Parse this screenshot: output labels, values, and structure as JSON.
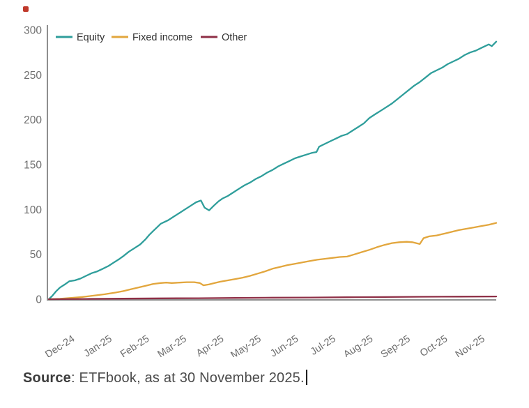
{
  "marker": {
    "color": "#c0392b"
  },
  "source_note": {
    "prefix": "Source",
    "text": ": ETFbook, as at 30 November 2025.",
    "caret_visible": true
  },
  "colors": {
    "axis": "#8f8f8f",
    "tick_label": "#6e6e6e",
    "legend_text": "#333333",
    "equity": "#2f9e9b",
    "fixed_income": "#e2a63d",
    "other": "#8e2f46"
  },
  "chart_data": {
    "type": "line",
    "title": "",
    "xlabel": "",
    "ylabel": "",
    "grid": false,
    "legend_position": "top-left",
    "x_axis": {
      "labels": [
        "Dec-24",
        "Jan-25",
        "Feb-25",
        "Mar-25",
        "Apr-25",
        "May-25",
        "Jun-25",
        "Jul-25",
        "Aug-25",
        "Sep-25",
        "Oct-25",
        "Nov-25"
      ],
      "label_rotation_deg": 33,
      "range_months": [
        0,
        12
      ]
    },
    "y_axis": {
      "ticks": [
        0,
        50,
        100,
        150,
        200,
        250,
        300
      ],
      "range": [
        0,
        300
      ]
    },
    "series": [
      {
        "name": "Equity",
        "color": "#2f9e9b",
        "points": [
          [
            0,
            0
          ],
          [
            0.1,
            4
          ],
          [
            0.2,
            9
          ],
          [
            0.3,
            13
          ],
          [
            0.45,
            17
          ],
          [
            0.55,
            20
          ],
          [
            0.7,
            21
          ],
          [
            0.85,
            23
          ],
          [
            1,
            26
          ],
          [
            1.15,
            29
          ],
          [
            1.3,
            31
          ],
          [
            1.45,
            34
          ],
          [
            1.6,
            37
          ],
          [
            1.75,
            41
          ],
          [
            1.9,
            45
          ],
          [
            2,
            48
          ],
          [
            2.15,
            53
          ],
          [
            2.3,
            57
          ],
          [
            2.45,
            61
          ],
          [
            2.6,
            67
          ],
          [
            2.7,
            72
          ],
          [
            2.8,
            76
          ],
          [
            2.9,
            80
          ],
          [
            3,
            84
          ],
          [
            3.1,
            86
          ],
          [
            3.2,
            88
          ],
          [
            3.35,
            92
          ],
          [
            3.5,
            96
          ],
          [
            3.65,
            100
          ],
          [
            3.8,
            104
          ],
          [
            3.95,
            108
          ],
          [
            4.08,
            110
          ],
          [
            4.18,
            102
          ],
          [
            4.3,
            99
          ],
          [
            4.42,
            104
          ],
          [
            4.55,
            109
          ],
          [
            4.65,
            112
          ],
          [
            4.8,
            115
          ],
          [
            4.95,
            119
          ],
          [
            5.1,
            123
          ],
          [
            5.25,
            127
          ],
          [
            5.4,
            130
          ],
          [
            5.55,
            134
          ],
          [
            5.7,
            137
          ],
          [
            5.85,
            141
          ],
          [
            6,
            144
          ],
          [
            6.15,
            148
          ],
          [
            6.3,
            151
          ],
          [
            6.45,
            154
          ],
          [
            6.6,
            157
          ],
          [
            6.75,
            159
          ],
          [
            6.9,
            161
          ],
          [
            7.05,
            163
          ],
          [
            7.18,
            164
          ],
          [
            7.25,
            170
          ],
          [
            7.4,
            173
          ],
          [
            7.55,
            176
          ],
          [
            7.7,
            179
          ],
          [
            7.85,
            182
          ],
          [
            8,
            184
          ],
          [
            8.15,
            188
          ],
          [
            8.3,
            192
          ],
          [
            8.45,
            196
          ],
          [
            8.6,
            202
          ],
          [
            8.75,
            206
          ],
          [
            8.9,
            210
          ],
          [
            9.05,
            214
          ],
          [
            9.2,
            218
          ],
          [
            9.35,
            223
          ],
          [
            9.5,
            228
          ],
          [
            9.65,
            233
          ],
          [
            9.8,
            238
          ],
          [
            9.95,
            242
          ],
          [
            10.1,
            247
          ],
          [
            10.25,
            252
          ],
          [
            10.4,
            255
          ],
          [
            10.55,
            258
          ],
          [
            10.7,
            262
          ],
          [
            10.85,
            265
          ],
          [
            11,
            268
          ],
          [
            11.15,
            272
          ],
          [
            11.3,
            275
          ],
          [
            11.45,
            277
          ],
          [
            11.6,
            280
          ],
          [
            11.7,
            282
          ],
          [
            11.8,
            284
          ],
          [
            11.88,
            282
          ],
          [
            12,
            287
          ]
        ]
      },
      {
        "name": "Fixed income",
        "color": "#e2a63d",
        "points": [
          [
            0,
            0
          ],
          [
            0.3,
            0.5
          ],
          [
            0.6,
            1.5
          ],
          [
            0.9,
            2.5
          ],
          [
            1.2,
            4
          ],
          [
            1.5,
            5.5
          ],
          [
            1.8,
            7.5
          ],
          [
            2,
            9
          ],
          [
            2.2,
            11
          ],
          [
            2.4,
            13
          ],
          [
            2.6,
            15
          ],
          [
            2.8,
            17
          ],
          [
            3,
            18
          ],
          [
            3.15,
            18.5
          ],
          [
            3.3,
            18
          ],
          [
            3.5,
            18.5
          ],
          [
            3.7,
            19
          ],
          [
            3.9,
            19
          ],
          [
            4.05,
            18
          ],
          [
            4.15,
            15.5
          ],
          [
            4.3,
            16.5
          ],
          [
            4.45,
            18
          ],
          [
            4.6,
            19.5
          ],
          [
            4.8,
            21
          ],
          [
            5,
            22.5
          ],
          [
            5.2,
            24
          ],
          [
            5.4,
            26
          ],
          [
            5.6,
            28.5
          ],
          [
            5.8,
            31
          ],
          [
            6,
            34
          ],
          [
            6.2,
            36
          ],
          [
            6.4,
            38
          ],
          [
            6.6,
            39.5
          ],
          [
            6.8,
            41
          ],
          [
            7,
            42.5
          ],
          [
            7.2,
            44
          ],
          [
            7.4,
            45
          ],
          [
            7.6,
            46
          ],
          [
            7.8,
            47
          ],
          [
            8,
            47.5
          ],
          [
            8.2,
            50
          ],
          [
            8.4,
            52.5
          ],
          [
            8.6,
            55
          ],
          [
            8.8,
            58
          ],
          [
            9,
            60.5
          ],
          [
            9.2,
            62.5
          ],
          [
            9.4,
            63.5
          ],
          [
            9.6,
            64
          ],
          [
            9.75,
            63.5
          ],
          [
            9.95,
            61.5
          ],
          [
            10.05,
            68
          ],
          [
            10.2,
            70
          ],
          [
            10.4,
            71
          ],
          [
            10.6,
            73
          ],
          [
            10.8,
            75
          ],
          [
            11,
            77
          ],
          [
            11.2,
            78.5
          ],
          [
            11.4,
            80
          ],
          [
            11.6,
            81.5
          ],
          [
            11.8,
            83
          ],
          [
            12,
            85
          ]
        ]
      },
      {
        "name": "Other",
        "color": "#8e2f46",
        "points": [
          [
            0,
            0
          ],
          [
            1,
            0.3
          ],
          [
            2,
            0.6
          ],
          [
            3,
            0.9
          ],
          [
            4,
            1.1
          ],
          [
            5,
            1.4
          ],
          [
            6,
            1.7
          ],
          [
            7,
            1.9
          ],
          [
            8,
            2.2
          ],
          [
            9,
            2.4
          ],
          [
            10,
            2.7
          ],
          [
            11,
            2.9
          ],
          [
            12,
            3
          ]
        ]
      }
    ]
  }
}
